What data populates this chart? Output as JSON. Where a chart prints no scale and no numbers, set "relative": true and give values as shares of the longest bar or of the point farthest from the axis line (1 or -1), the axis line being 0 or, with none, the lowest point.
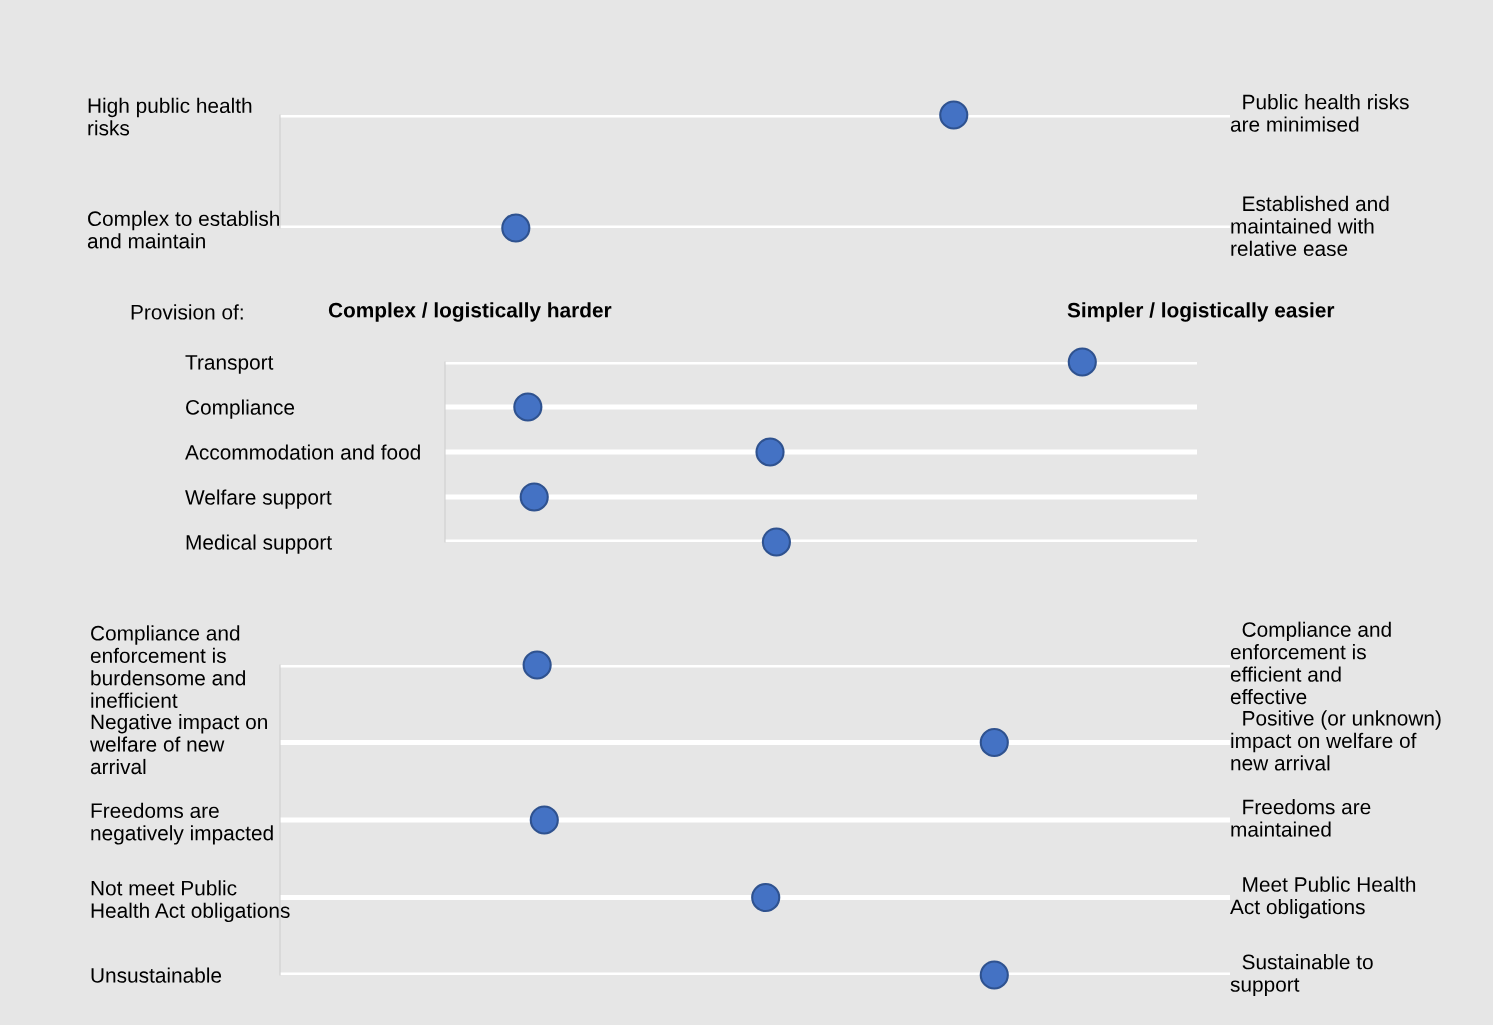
{
  "chart_data": [
    {
      "type": "scatter",
      "orientation": "horizontal",
      "relative": true,
      "marker": "circle",
      "color": "#4472c4",
      "categories": [
        "High public health\nrisks",
        "Complex to establish\nand maintain"
      ],
      "grid": "y",
      "values": [
        1,
        0.35
      ],
      "annotations": [
        "Public health risks\nare minimised",
        "Established and\nmaintained with\nrelative ease"
      ]
    },
    {
      "type": "scatter",
      "orientation": "horizontal",
      "relative": true,
      "marker": "circle",
      "color": "#4472c4",
      "title": "Provision of:",
      "categories": [
        "Transport",
        "Compliance",
        "Accommodation and food",
        "Welfare support",
        "Medical support"
      ],
      "grid": "y",
      "values": [
        1,
        0.13,
        0.51,
        0.14,
        0.52
      ],
      "annotations": [
        "Complex / logistically harder",
        "Simpler / logistically easier"
      ]
    },
    {
      "type": "scatter",
      "orientation": "horizontal",
      "relative": true,
      "marker": "circle",
      "color": "#4472c4",
      "categories": [
        "Compliance and\nenforcement is\nburdensome and\ninefficient",
        "Negative impact on\nwelfare of new\narrival",
        "Freedoms are\nnegatively impacted",
        "Not meet Public\nHealth Act obligations",
        "Unsustainable"
      ],
      "grid": "y",
      "values": [
        0.36,
        1,
        0.37,
        0.68,
        1
      ],
      "annotations": [
        "Compliance and\nenforcement is\nefficient and\neffective",
        "Positive (or unknown)\nimpact on welfare of\nnew arrival",
        "Freedoms are\nmaintained",
        "Meet Public Health\nAct obligations",
        "Sustainable to\nsupport"
      ]
    }
  ]
}
